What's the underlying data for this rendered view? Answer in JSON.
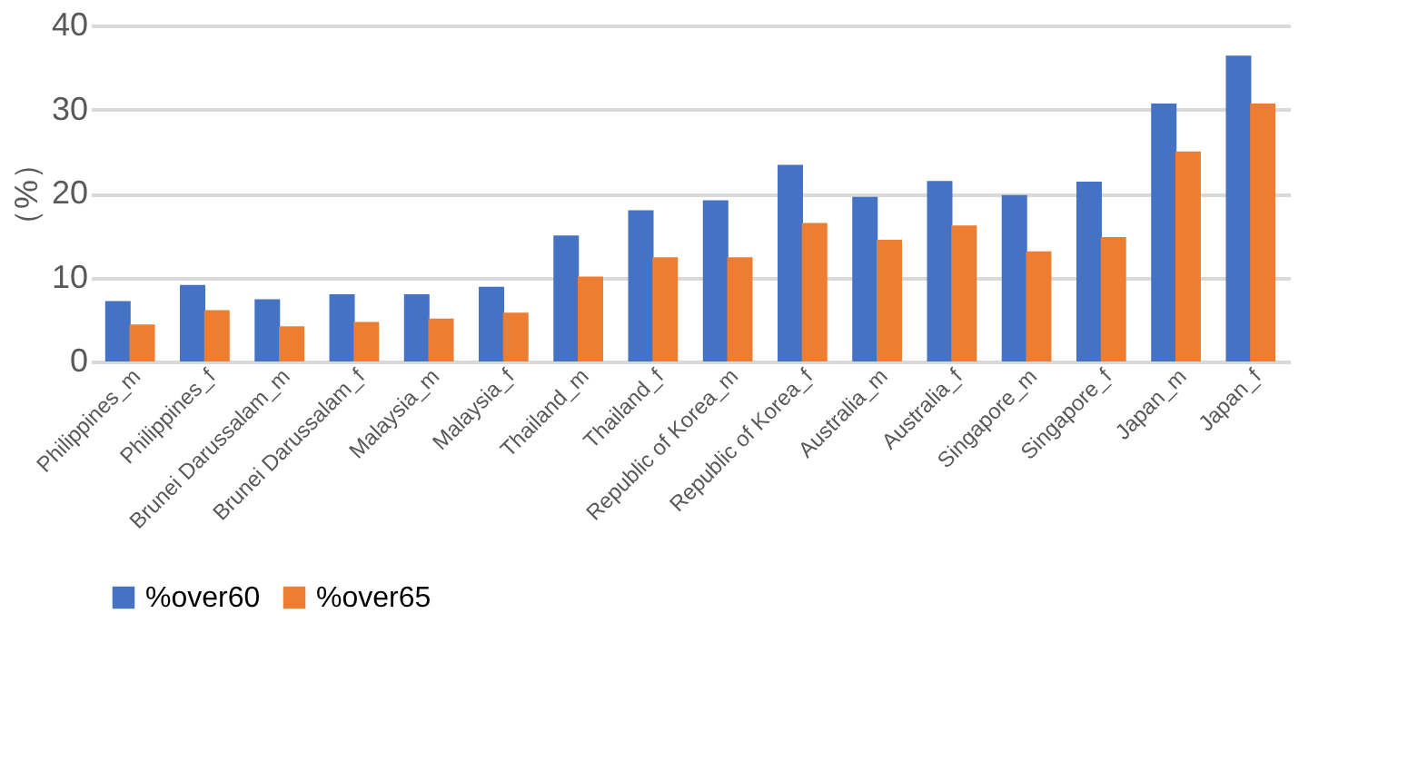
{
  "chart_data": {
    "type": "bar",
    "ylabel": "（%）",
    "categories": [
      "Philippines_m",
      "Philippines_f",
      "Brunei Darussalam_m",
      "Brunei Darussalam_f",
      "Malaysia_m",
      "Malaysia_f",
      "Thailand_m",
      "Thailand_f",
      "Republic of Korea_m",
      "Republic of Korea_f",
      "Australia_m",
      "Australia_f",
      "Singapore_m",
      "Singapore_f",
      "Japan_m",
      "Japan_f"
    ],
    "series": [
      {
        "name": "%over60",
        "color": "#4472c4",
        "values": [
          7.2,
          9.1,
          7.4,
          8.0,
          8.0,
          8.9,
          15.0,
          18.0,
          19.2,
          23.4,
          19.6,
          21.5,
          19.8,
          21.4,
          30.7,
          36.4
        ]
      },
      {
        "name": "%over65",
        "color": "#ed7d31",
        "values": [
          4.4,
          6.1,
          4.2,
          4.7,
          5.1,
          5.8,
          10.1,
          12.4,
          12.4,
          16.5,
          14.5,
          16.2,
          13.1,
          14.8,
          25.0,
          30.7
        ]
      }
    ],
    "ylim": [
      0,
      40
    ],
    "yticks": [
      0,
      10,
      20,
      30,
      40
    ],
    "grid": "y",
    "legend": "bottom"
  }
}
